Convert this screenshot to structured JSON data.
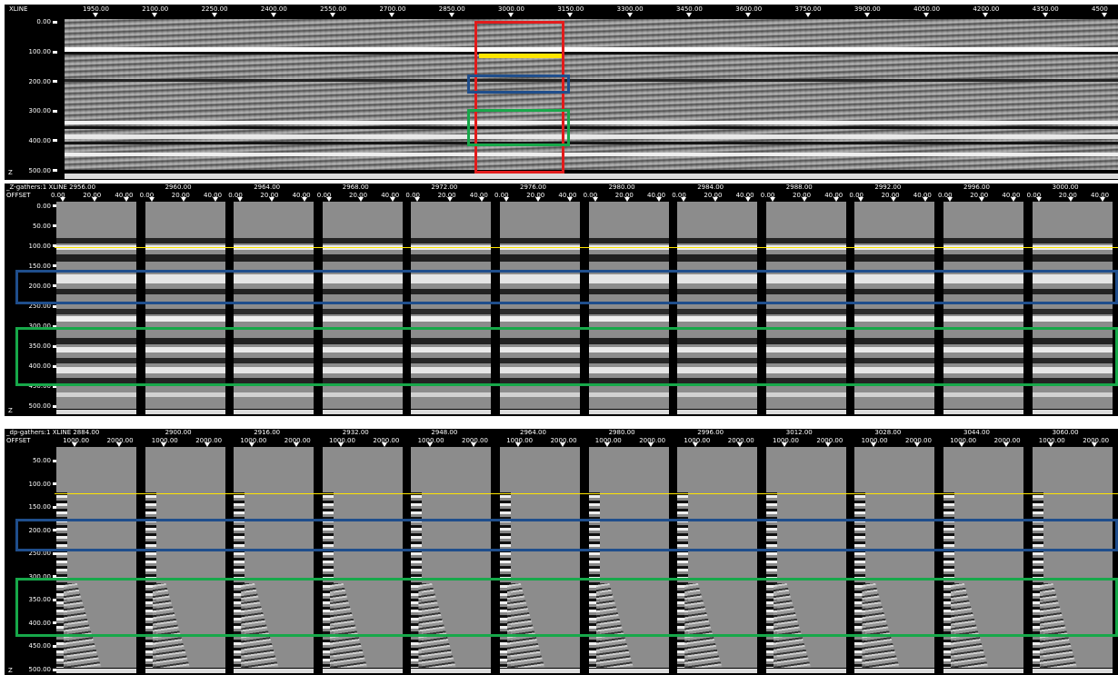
{
  "colors": {
    "red": "#e21b1b",
    "blue": "#1f4e8c",
    "green": "#17a84a",
    "yellow": "#ffe600"
  },
  "panel1": {
    "axis_label": "XLINE",
    "z_label": "Z",
    "xticks": [
      "1950.00",
      "2100.00",
      "2250.00",
      "2400.00",
      "2550.00",
      "2700.00",
      "2850.00",
      "3000.00",
      "3150.00",
      "3300.00",
      "3450.00",
      "3600.00",
      "3750.00",
      "3900.00",
      "4050.00",
      "4200.00",
      "4350.00",
      "4500"
    ],
    "yticks": [
      "0.00",
      "100.00",
      "200.00",
      "300.00",
      "400.00",
      "500.00"
    ]
  },
  "panel2": {
    "title": "_Z-gathers:1 XLINE  2956.00",
    "offset_label": "OFFSET",
    "z_label": "Z",
    "xlines": [
      "2960.00",
      "2964.00",
      "2968.00",
      "2972.00",
      "2976.00",
      "2980.00",
      "2984.00",
      "2988.00",
      "2992.00",
      "2996.00",
      "3000.00"
    ],
    "offset_ticks": [
      "0.00",
      "20.00",
      "40.00"
    ],
    "yticks": [
      "0.00",
      "50.00",
      "100.00",
      "150.00",
      "200.00",
      "250.00",
      "300.00",
      "350.00",
      "400.00",
      "450.00",
      "500.00"
    ]
  },
  "panel3": {
    "title": "_dp-gathers:1 XLINE  2884.00",
    "offset_label": "OFFSET",
    "z_label": "Z",
    "xlines": [
      "2900.00",
      "2916.00",
      "2932.00",
      "2948.00",
      "2964.00",
      "2980.00",
      "2996.00",
      "3012.00",
      "3028.00",
      "3044.00",
      "3060.00"
    ],
    "offset_ticks": [
      "1000.00",
      "2000.00"
    ],
    "yticks": [
      "50.00",
      "100.00",
      "150.00",
      "200.00",
      "250.00",
      "300.00",
      "350.00",
      "400.00",
      "450.00",
      "500.00"
    ]
  }
}
